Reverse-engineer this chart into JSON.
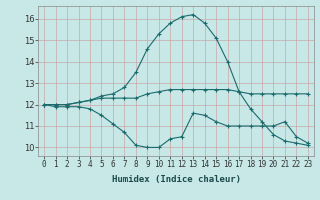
{
  "background_color": "#c8e8e8",
  "grid_color": "#c8a8a8",
  "line_color": "#1a6b6b",
  "xlabel": "Humidex (Indice chaleur)",
  "xlim": [
    -0.5,
    23.5
  ],
  "ylim": [
    9.6,
    16.6
  ],
  "yticks": [
    10,
    11,
    12,
    13,
    14,
    15,
    16
  ],
  "xticks": [
    0,
    1,
    2,
    3,
    4,
    5,
    6,
    7,
    8,
    9,
    10,
    11,
    12,
    13,
    14,
    15,
    16,
    17,
    18,
    19,
    20,
    21,
    22,
    23
  ],
  "series": [
    [
      12.0,
      11.9,
      11.9,
      11.9,
      11.8,
      11.5,
      11.1,
      10.7,
      10.1,
      10.0,
      10.0,
      10.4,
      10.5,
      11.6,
      11.5,
      11.2,
      11.0,
      11.0,
      11.0,
      11.0,
      11.0,
      11.2,
      10.5,
      10.2
    ],
    [
      12.0,
      12.0,
      12.0,
      12.1,
      12.2,
      12.3,
      12.3,
      12.3,
      12.3,
      12.5,
      12.6,
      12.7,
      12.7,
      12.7,
      12.7,
      12.7,
      12.7,
      12.6,
      12.5,
      12.5,
      12.5,
      12.5,
      12.5,
      12.5
    ],
    [
      12.0,
      12.0,
      12.0,
      12.1,
      12.2,
      12.4,
      12.5,
      12.8,
      13.5,
      14.6,
      15.3,
      15.8,
      16.1,
      16.2,
      15.8,
      15.1,
      14.0,
      12.6,
      11.8,
      11.2,
      10.6,
      10.3,
      10.2,
      10.1
    ]
  ],
  "xlabel_fontsize": 6.5,
  "xlabel_color": "#1a4a4a",
  "tick_fontsize": 5.5,
  "ytick_fontsize": 6.0
}
